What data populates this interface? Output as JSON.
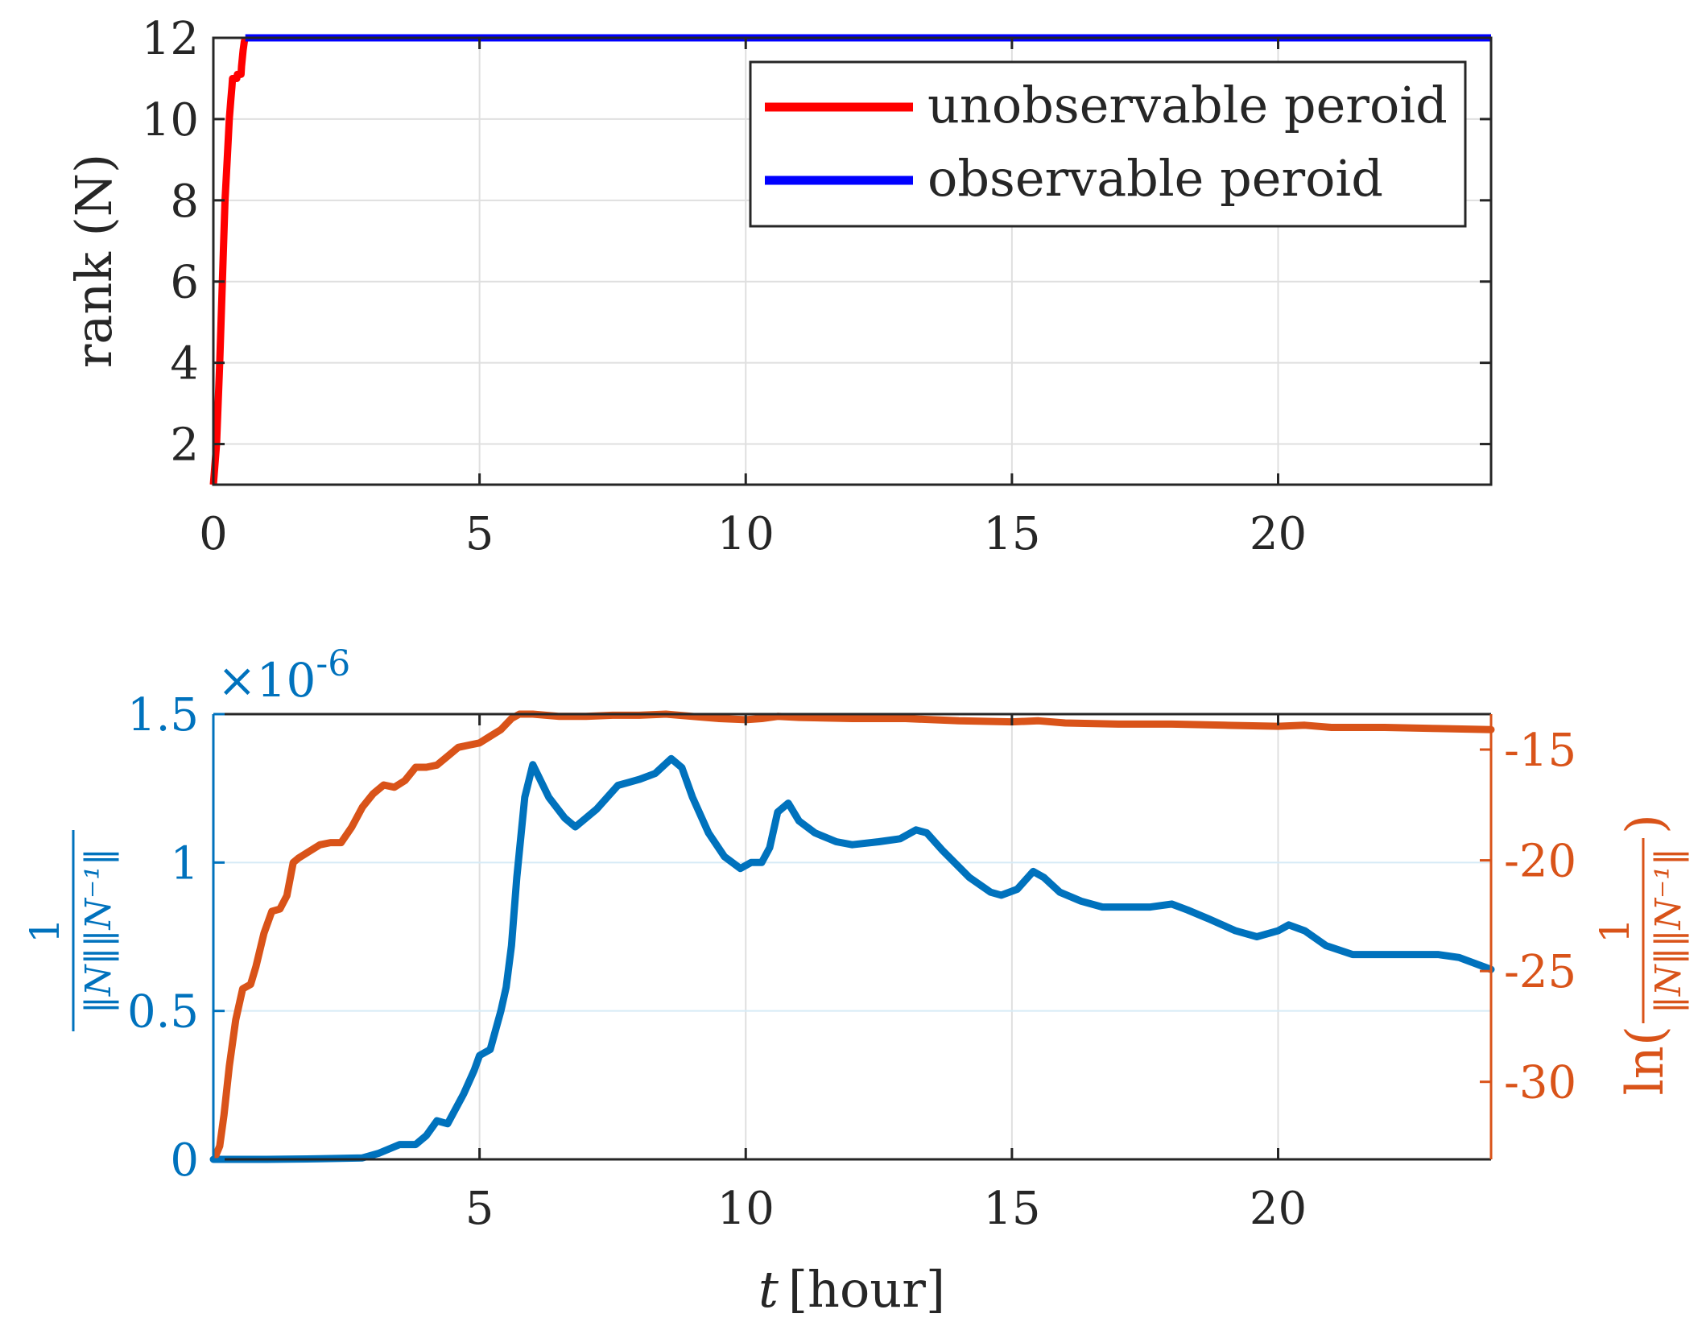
{
  "chart_data": [
    {
      "type": "line",
      "ylabel": "rank (N)",
      "xlim": [
        0,
        24
      ],
      "ylim": [
        1,
        12
      ],
      "xticks": [
        "0",
        "5",
        "10",
        "15",
        "20"
      ],
      "yticks": [
        "2",
        "4",
        "6",
        "8",
        "10",
        "12"
      ],
      "grid": true,
      "legend": {
        "position": "top-right",
        "entries": [
          "unobservable peroid",
          "observable peroid"
        ]
      },
      "series": [
        {
          "name": "unobservable peroid",
          "color": "#ff0000",
          "x": [
            0.0,
            0.06,
            0.12,
            0.17,
            0.22,
            0.26,
            0.3,
            0.33,
            0.35,
            0.36,
            0.44,
            0.45,
            0.52,
            0.53,
            0.56,
            0.58,
            0.6
          ],
          "y": [
            1,
            2,
            4,
            6,
            8,
            9,
            10,
            10.5,
            10.8,
            11,
            11,
            11.1,
            11.1,
            11.3,
            11.7,
            11.9,
            12
          ]
        },
        {
          "name": "observable peroid",
          "color": "#0000ff",
          "x": [
            0.6,
            24
          ],
          "y": [
            12,
            12
          ]
        }
      ]
    },
    {
      "type": "line",
      "xlabel_var": "t",
      "xlabel_unit": "[hour]",
      "ylabel_left_frac_top": "1",
      "ylabel_left_frac_bottom": "‖N‖‖N⁻¹‖",
      "ylabel_right_prefix": "ln(",
      "ylabel_right_suffix": ")",
      "ylabel_right_frac_top": "1",
      "ylabel_right_frac_bottom": "‖N‖‖N⁻¹‖",
      "y_exponent_mult": "×10",
      "y_exponent_power": "-6",
      "xlim": [
        0,
        24
      ],
      "ylim_left": [
        0,
        1.5
      ],
      "ylim_right": [
        -33.5,
        -13.4
      ],
      "xticks": [
        "5",
        "10",
        "15",
        "20"
      ],
      "yticks_left": [
        "0",
        "0.5",
        "1",
        "1.5"
      ],
      "yticks_right": [
        "-15",
        "-20",
        "-25",
        "-30"
      ],
      "grid": true,
      "series": [
        {
          "name": "1/(‖N‖‖N⁻¹‖)",
          "axis": "left",
          "color": "#0072bd",
          "x": [
            0,
            1,
            2,
            2.8,
            3.1,
            3.5,
            3.8,
            4.0,
            4.2,
            4.4,
            4.7,
            4.9,
            5.0,
            5.2,
            5.4,
            5.5,
            5.6,
            5.7,
            5.85,
            6.0,
            6.3,
            6.6,
            6.8,
            7.2,
            7.6,
            7.8,
            8.0,
            8.3,
            8.6,
            8.8,
            9.0,
            9.3,
            9.6,
            9.9,
            10.1,
            10.3,
            10.45,
            10.6,
            10.8,
            11.0,
            11.3,
            11.7,
            12.0,
            12.5,
            12.9,
            13.2,
            13.4,
            13.7,
            14.2,
            14.6,
            14.8,
            15.1,
            15.4,
            15.6,
            15.9,
            16.3,
            16.7,
            17.2,
            17.6,
            18.0,
            18.3,
            18.7,
            19.2,
            19.6,
            20.0,
            20.2,
            20.5,
            20.9,
            21.4,
            22.0,
            22.6,
            23.0,
            23.4,
            24.0
          ],
          "y": [
            0,
            0,
            0.002,
            0.005,
            0.02,
            0.05,
            0.05,
            0.08,
            0.13,
            0.12,
            0.22,
            0.3,
            0.35,
            0.37,
            0.5,
            0.58,
            0.72,
            0.95,
            1.22,
            1.33,
            1.22,
            1.15,
            1.12,
            1.18,
            1.26,
            1.27,
            1.28,
            1.3,
            1.35,
            1.32,
            1.22,
            1.1,
            1.02,
            0.98,
            1.0,
            1.0,
            1.05,
            1.17,
            1.2,
            1.14,
            1.1,
            1.07,
            1.06,
            1.07,
            1.08,
            1.11,
            1.1,
            1.04,
            0.95,
            0.9,
            0.89,
            0.91,
            0.97,
            0.95,
            0.9,
            0.87,
            0.85,
            0.85,
            0.85,
            0.86,
            0.84,
            0.81,
            0.77,
            0.75,
            0.77,
            0.79,
            0.77,
            0.72,
            0.69,
            0.69,
            0.69,
            0.69,
            0.68,
            0.64
          ]
        },
        {
          "name": "ln(1/(‖N‖‖N⁻¹‖))",
          "axis": "right",
          "color": "#d95319",
          "x": [
            0.05,
            0.12,
            0.2,
            0.3,
            0.42,
            0.55,
            0.7,
            0.8,
            0.95,
            1.1,
            1.25,
            1.38,
            1.5,
            1.6,
            1.8,
            2.0,
            2.2,
            2.4,
            2.6,
            2.8,
            3.0,
            3.2,
            3.4,
            3.6,
            3.8,
            4.0,
            4.2,
            4.4,
            4.6,
            4.8,
            5.0,
            5.2,
            5.4,
            5.6,
            5.75,
            6.0,
            6.5,
            7.0,
            7.5,
            8.0,
            8.5,
            9.0,
            9.5,
            10.0,
            10.3,
            10.6,
            11.0,
            12.0,
            13.0,
            14.0,
            15.0,
            15.5,
            16.0,
            17.0,
            18.0,
            19.0,
            20.0,
            20.5,
            21.0,
            22.0,
            23.0,
            24.0
          ],
          "y": [
            -33.3,
            -32.9,
            -31.5,
            -29.3,
            -27.2,
            -25.8,
            -25.6,
            -24.8,
            -23.3,
            -22.3,
            -22.2,
            -21.6,
            -20.1,
            -19.9,
            -19.6,
            -19.3,
            -19.2,
            -19.2,
            -18.5,
            -17.6,
            -17.0,
            -16.6,
            -16.7,
            -16.4,
            -15.8,
            -15.8,
            -15.7,
            -15.3,
            -14.9,
            -14.8,
            -14.7,
            -14.4,
            -14.1,
            -13.6,
            -13.4,
            -13.4,
            -13.5,
            -13.5,
            -13.45,
            -13.45,
            -13.4,
            -13.5,
            -13.6,
            -13.65,
            -13.6,
            -13.5,
            -13.55,
            -13.6,
            -13.6,
            -13.7,
            -13.75,
            -13.7,
            -13.8,
            -13.85,
            -13.85,
            -13.9,
            -13.95,
            -13.9,
            -14.0,
            -14.0,
            -14.05,
            -14.1
          ]
        }
      ]
    }
  ]
}
